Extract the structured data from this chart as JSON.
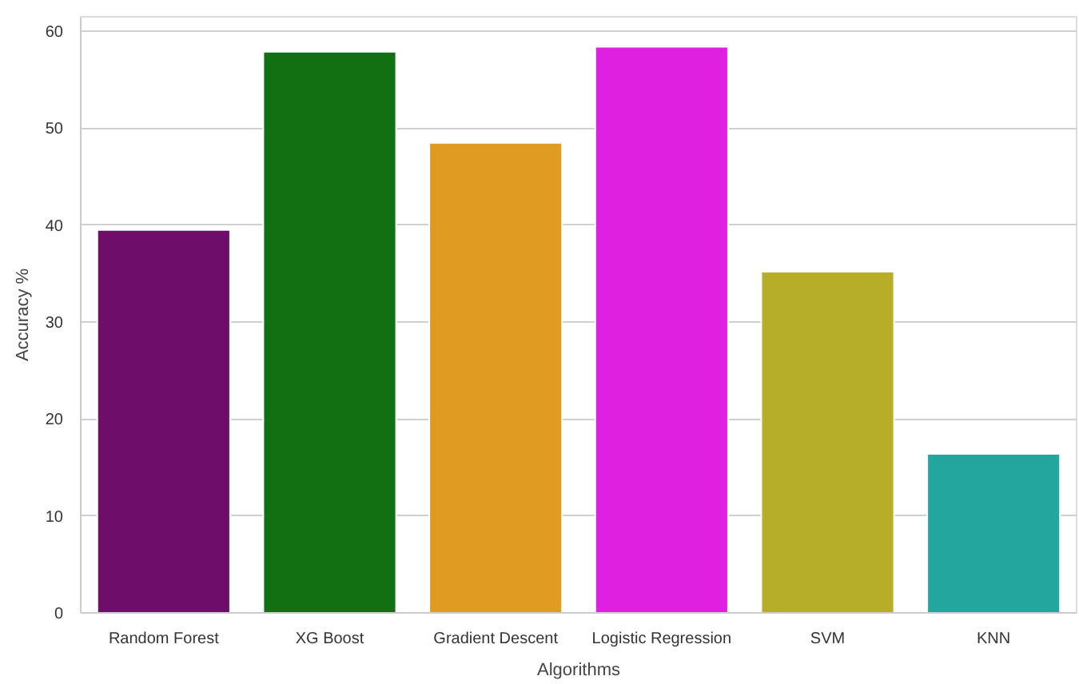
{
  "chart_data": {
    "type": "bar",
    "xlabel": "Algorithms",
    "ylabel": "Accuracy %",
    "categories": [
      "Random Forest",
      "XG Boost",
      "Gradient Descent",
      "Logistic Regression",
      "SVM",
      "KNN"
    ],
    "values": [
      39.5,
      57.9,
      48.5,
      58.4,
      35.2,
      16.4
    ],
    "colors": [
      "#6e0e6a",
      "#127012",
      "#e09c22",
      "#e020e0",
      "#b6ae28",
      "#22a69e"
    ],
    "ylim": [
      0,
      61.5
    ],
    "yticks": [
      0,
      10,
      20,
      30,
      40,
      50,
      60
    ],
    "grid": "y"
  }
}
